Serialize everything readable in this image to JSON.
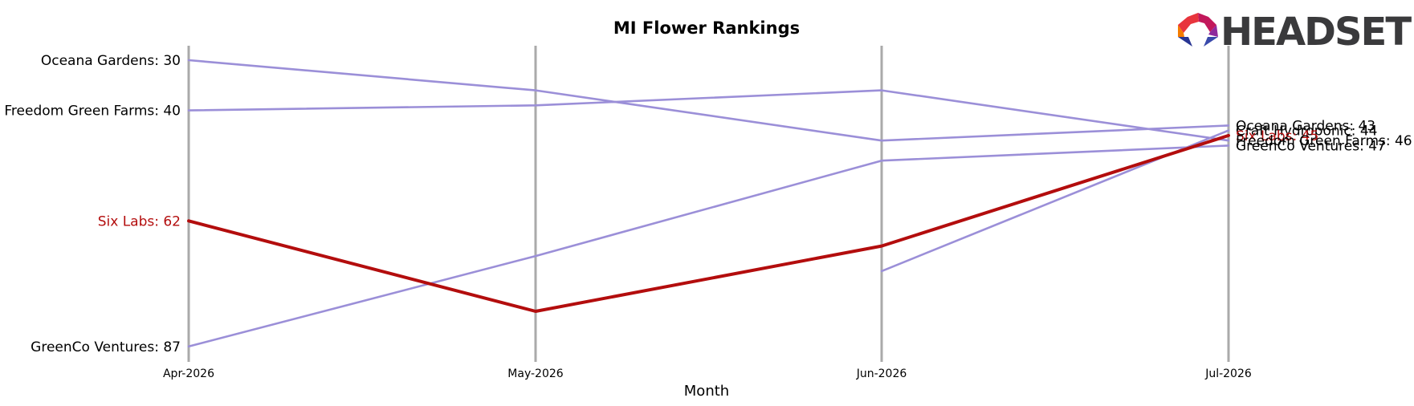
{
  "chart_data": {
    "type": "line",
    "title": "MI Flower Rankings",
    "xlabel": "Month",
    "ylabel": "",
    "categories": [
      "Apr-2026",
      "May-2026",
      "Jun-2026",
      "Jul-2026"
    ],
    "y_inverted": true,
    "grid": "vertical lines at each month",
    "colors": {
      "highlight": "#b30d0d",
      "other": "#9b8fd8",
      "axis": "#aaaaaa"
    },
    "series": [
      {
        "name": "Oceana Gardens",
        "values": [
          30,
          36,
          46,
          43
        ],
        "highlight": false
      },
      {
        "name": "Freedom Green Farms",
        "values": [
          40,
          39,
          36,
          46
        ],
        "highlight": false
      },
      {
        "name": "Six Labs",
        "values": [
          62,
          80,
          67,
          45
        ],
        "highlight": true
      },
      {
        "name": "GreenCo Ventures",
        "values": [
          87,
          69,
          50,
          47
        ],
        "highlight": false
      },
      {
        "name": "Craft Hydroponic",
        "values": [
          null,
          null,
          72,
          44
        ],
        "highlight": false
      }
    ],
    "left_labels": [
      {
        "text": "Oceana Gardens: 30",
        "value": 30,
        "highlight": false
      },
      {
        "text": "Freedom Green Farms: 40",
        "value": 40,
        "highlight": false
      },
      {
        "text": "Six Labs: 62",
        "value": 62,
        "highlight": true
      },
      {
        "text": "GreenCo Ventures: 87",
        "value": 87,
        "highlight": false
      }
    ],
    "right_labels": [
      {
        "text": "Oceana Gardens: 43",
        "value": 43,
        "highlight": false
      },
      {
        "text": "Craft Hydroponic: 44",
        "value": 44,
        "highlight": false
      },
      {
        "text": "Six Labs: 45",
        "value": 45,
        "highlight": true
      },
      {
        "text": "Freedom Green Farms: 46",
        "value": 46,
        "highlight": false
      },
      {
        "text": "GreenCo Ventures: 47",
        "value": 47,
        "highlight": false
      }
    ]
  },
  "logo": {
    "text": "HEADSET"
  }
}
